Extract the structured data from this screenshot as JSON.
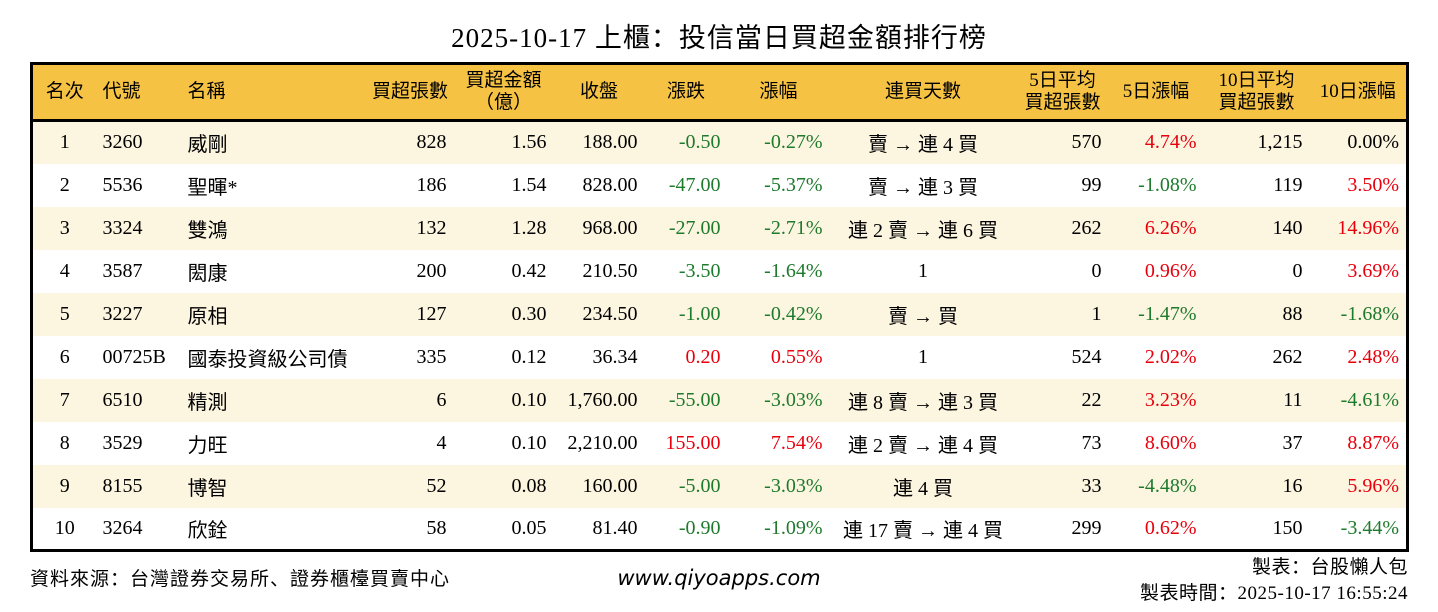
{
  "chart_data": {
    "type": "table",
    "title": "2025-10-17 上櫃：投信當日買超金額排行榜",
    "columns": [
      {
        "key": "rank",
        "label": "名次"
      },
      {
        "key": "code",
        "label": "代號"
      },
      {
        "key": "name",
        "label": "名稱"
      },
      {
        "key": "buy_volume",
        "label": "買超張數"
      },
      {
        "key": "buy_amount",
        "label": "買超金額\n（億）"
      },
      {
        "key": "close",
        "label": "收盤"
      },
      {
        "key": "change",
        "label": "漲跌"
      },
      {
        "key": "change_pct",
        "label": "漲幅"
      },
      {
        "key": "streak",
        "label": "連買天數"
      },
      {
        "key": "avg5_volume",
        "label": "5日平均\n買超張數"
      },
      {
        "key": "pct5",
        "label": "5日漲幅"
      },
      {
        "key": "avg10_volume",
        "label": "10日平均\n買超張數"
      },
      {
        "key": "pct10",
        "label": "10日漲幅"
      }
    ],
    "rows": [
      {
        "rank": "1",
        "code": "3260",
        "name": "威剛",
        "buy_volume": "828",
        "buy_amount": "1.56",
        "close": "188.00",
        "change": "-0.50",
        "change_color": "green",
        "change_pct": "-0.27%",
        "change_pct_color": "green",
        "streak": "賣 → 連 4 買",
        "avg5_volume": "570",
        "pct5": "4.74%",
        "pct5_color": "red",
        "avg10_volume": "1,215",
        "pct10": "0.00%",
        "pct10_color": "black"
      },
      {
        "rank": "2",
        "code": "5536",
        "name": "聖暉*",
        "buy_volume": "186",
        "buy_amount": "1.54",
        "close": "828.00",
        "change": "-47.00",
        "change_color": "green",
        "change_pct": "-5.37%",
        "change_pct_color": "green",
        "streak": "賣 → 連 3 買",
        "avg5_volume": "99",
        "pct5": "-1.08%",
        "pct5_color": "green",
        "avg10_volume": "119",
        "pct10": "3.50%",
        "pct10_color": "red"
      },
      {
        "rank": "3",
        "code": "3324",
        "name": "雙鴻",
        "buy_volume": "132",
        "buy_amount": "1.28",
        "close": "968.00",
        "change": "-27.00",
        "change_color": "green",
        "change_pct": "-2.71%",
        "change_pct_color": "green",
        "streak": "連 2 賣 → 連 6 買",
        "avg5_volume": "262",
        "pct5": "6.26%",
        "pct5_color": "red",
        "avg10_volume": "140",
        "pct10": "14.96%",
        "pct10_color": "red"
      },
      {
        "rank": "4",
        "code": "3587",
        "name": "閎康",
        "buy_volume": "200",
        "buy_amount": "0.42",
        "close": "210.50",
        "change": "-3.50",
        "change_color": "green",
        "change_pct": "-1.64%",
        "change_pct_color": "green",
        "streak": "1",
        "avg5_volume": "0",
        "pct5": "0.96%",
        "pct5_color": "red",
        "avg10_volume": "0",
        "pct10": "3.69%",
        "pct10_color": "red"
      },
      {
        "rank": "5",
        "code": "3227",
        "name": "原相",
        "buy_volume": "127",
        "buy_amount": "0.30",
        "close": "234.50",
        "change": "-1.00",
        "change_color": "green",
        "change_pct": "-0.42%",
        "change_pct_color": "green",
        "streak": "賣 → 買",
        "avg5_volume": "1",
        "pct5": "-1.47%",
        "pct5_color": "green",
        "avg10_volume": "88",
        "pct10": "-1.68%",
        "pct10_color": "green"
      },
      {
        "rank": "6",
        "code": "00725B",
        "name": "國泰投資級公司債",
        "buy_volume": "335",
        "buy_amount": "0.12",
        "close": "36.34",
        "change": "0.20",
        "change_color": "red",
        "change_pct": "0.55%",
        "change_pct_color": "red",
        "streak": "1",
        "avg5_volume": "524",
        "pct5": "2.02%",
        "pct5_color": "red",
        "avg10_volume": "262",
        "pct10": "2.48%",
        "pct10_color": "red"
      },
      {
        "rank": "7",
        "code": "6510",
        "name": "精測",
        "buy_volume": "6",
        "buy_amount": "0.10",
        "close": "1,760.00",
        "change": "-55.00",
        "change_color": "green",
        "change_pct": "-3.03%",
        "change_pct_color": "green",
        "streak": "連 8 賣 → 連 3 買",
        "avg5_volume": "22",
        "pct5": "3.23%",
        "pct5_color": "red",
        "avg10_volume": "11",
        "pct10": "-4.61%",
        "pct10_color": "green"
      },
      {
        "rank": "8",
        "code": "3529",
        "name": "力旺",
        "buy_volume": "4",
        "buy_amount": "0.10",
        "close": "2,210.00",
        "change": "155.00",
        "change_color": "red",
        "change_pct": "7.54%",
        "change_pct_color": "red",
        "streak": "連 2 賣 → 連 4 買",
        "avg5_volume": "73",
        "pct5": "8.60%",
        "pct5_color": "red",
        "avg10_volume": "37",
        "pct10": "8.87%",
        "pct10_color": "red"
      },
      {
        "rank": "9",
        "code": "8155",
        "name": "博智",
        "buy_volume": "52",
        "buy_amount": "0.08",
        "close": "160.00",
        "change": "-5.00",
        "change_color": "green",
        "change_pct": "-3.03%",
        "change_pct_color": "green",
        "streak": "連 4 買",
        "avg5_volume": "33",
        "pct5": "-4.48%",
        "pct5_color": "green",
        "avg10_volume": "16",
        "pct10": "5.96%",
        "pct10_color": "red"
      },
      {
        "rank": "10",
        "code": "3264",
        "name": "欣銓",
        "buy_volume": "58",
        "buy_amount": "0.05",
        "close": "81.40",
        "change": "-0.90",
        "change_color": "green",
        "change_pct": "-1.09%",
        "change_pct_color": "green",
        "streak": "連 17 賣 → 連 4 買",
        "avg5_volume": "299",
        "pct5": "0.62%",
        "pct5_color": "red",
        "avg10_volume": "150",
        "pct10": "-3.44%",
        "pct10_color": "green"
      }
    ]
  },
  "footer": {
    "source": "資料來源：台灣證券交易所、證券櫃檯買賣中心",
    "website": "www.qiyoapps.com",
    "maker": "製表：台股懶人包",
    "time": "製表時間：2025-10-17 16:55:24"
  },
  "colors": {
    "header_bg": "#f6c244",
    "row_alt_bg": "#fcf5e0",
    "up_red": "#e8000d",
    "down_green": "#1e7a2c",
    "border": "#000000"
  }
}
